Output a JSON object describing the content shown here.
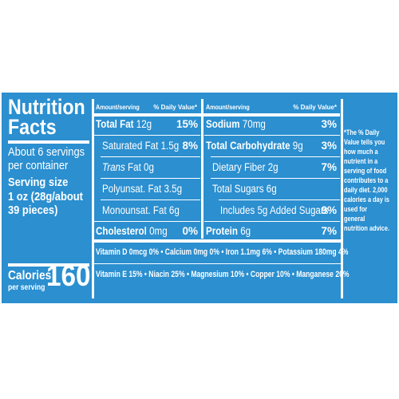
{
  "label": {
    "title_line1": "Nutrition",
    "title_line2": "Facts",
    "servings_line1": "About 6 servings",
    "servings_line2": "per container",
    "serving_size_label": "Serving size",
    "serving_size_line1": "1 oz (28g/about",
    "serving_size_line2": "39 pieces)",
    "calories_label": "Calories",
    "per_serving": "per serving",
    "calories_value": "160"
  },
  "headers": {
    "amount_serving_1": "Amount/serving",
    "daily_value_1": "% Daily Value*",
    "amount_serving_2": "Amount/serving",
    "daily_value_2": "% Daily Value*"
  },
  "col1": [
    {
      "name": "Total Fat",
      "amount": " 12g",
      "dv": "15%"
    },
    {
      "name": "Saturated Fat",
      "amount": " 1.5g",
      "dv": "8%"
    },
    {
      "name": "Trans",
      "amount": " Fat 0g",
      "dv": ""
    },
    {
      "name": "Polyunsat. Fat",
      "amount": " 3.5g",
      "dv": ""
    },
    {
      "name": "Monounsat. Fat",
      "amount": " 6g",
      "dv": ""
    },
    {
      "name": "Cholesterol",
      "amount": " 0mg",
      "dv": "0%"
    }
  ],
  "col2": [
    {
      "name": "Sodium",
      "amount": " 70mg",
      "dv": "3%"
    },
    {
      "name": "Total Carbohydrate",
      "amount": " 9g",
      "dv": "3%"
    },
    {
      "name": "Dietary Fiber",
      "amount": " 2g",
      "dv": "7%"
    },
    {
      "name": "Total Sugars",
      "amount": " 6g",
      "dv": ""
    },
    {
      "name": "Includes 5g Added Sugars",
      "amount": "",
      "dv": "9%"
    },
    {
      "name": "Protein",
      "amount": " 6g",
      "dv": "7%"
    }
  ],
  "vitamins": {
    "line1": "Vitamin D 0mcg 0% • Calcium 0mg 0% • Iron 1.1mg 6% • Potassium 180mg 4%",
    "line2": "Vitamin E 15% • Niacin 25% • Magnesium 10% • Copper 10% • Manganese 20%"
  },
  "footnote": "*The % Daily Value tells you how much a nutrient in a serving of food contributes to a daily diet. 2,000 calories a day is used for general nutrition advice.",
  "colors": {
    "background": "#2b8fd0",
    "text": "#ffffff"
  }
}
